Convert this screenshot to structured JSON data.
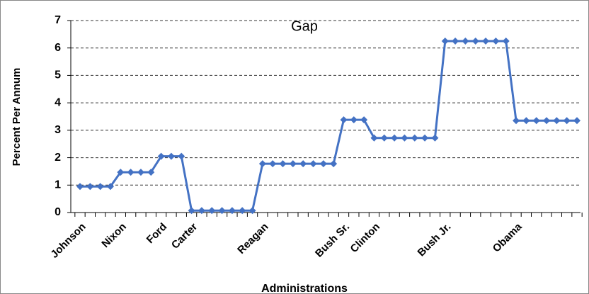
{
  "chart_data": {
    "type": "line",
    "title": "Gap",
    "y_label": "Percent Per Annum",
    "x_label": "Administrations",
    "color": "#4472c4",
    "grid": true,
    "ylim": [
      0,
      7
    ],
    "yticks": [
      0,
      1,
      2,
      3,
      4,
      5,
      6,
      7
    ],
    "categories": [
      "Johnson",
      null,
      null,
      null,
      "Nixon",
      null,
      null,
      null,
      "Ford",
      null,
      null,
      "Carter",
      null,
      null,
      null,
      null,
      null,
      null,
      "Reagan",
      null,
      null,
      null,
      null,
      null,
      null,
      null,
      "Bush Sr.",
      null,
      null,
      "Clinton",
      null,
      null,
      null,
      null,
      null,
      null,
      "Bush Jr.",
      null,
      null,
      null,
      null,
      null,
      null,
      "Obama",
      null,
      null,
      null,
      null,
      null,
      null
    ],
    "values": [
      0.95,
      0.95,
      0.95,
      0.95,
      1.47,
      1.47,
      1.47,
      1.47,
      2.05,
      2.05,
      2.05,
      0.07,
      0.07,
      0.07,
      0.07,
      0.07,
      0.07,
      0.07,
      1.78,
      1.78,
      1.78,
      1.78,
      1.78,
      1.78,
      1.78,
      1.78,
      3.38,
      3.38,
      3.38,
      2.72,
      2.72,
      2.72,
      2.72,
      2.72,
      2.72,
      2.72,
      6.25,
      6.25,
      6.25,
      6.25,
      6.25,
      6.25,
      6.25,
      3.35,
      3.35,
      3.35,
      3.35,
      3.35,
      3.35,
      3.35
    ]
  }
}
